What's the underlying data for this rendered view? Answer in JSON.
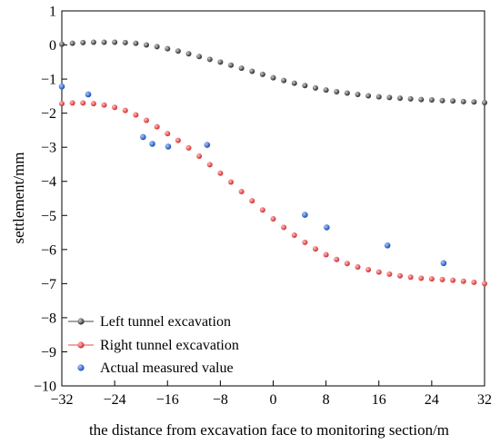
{
  "chart_data": {
    "type": "scatter",
    "xlabel": "the distance from excavation face to monitoring section/m",
    "ylabel": "settlement/mm",
    "xlim": [
      -32,
      32
    ],
    "ylim": [
      -10,
      1
    ],
    "xticks": [
      -32,
      -24,
      -16,
      -8,
      0,
      8,
      16,
      24,
      32
    ],
    "xtick_labels": [
      "−32",
      "−24",
      "−16",
      "−8",
      "0",
      "8",
      "16",
      "24",
      "32"
    ],
    "yticks": [
      1,
      0,
      -1,
      -2,
      -3,
      -4,
      -5,
      -6,
      -7,
      -8,
      -9,
      -10
    ],
    "ytick_labels": [
      "1",
      "0",
      "−1",
      "−2",
      "−3",
      "−4",
      "−5",
      "−6",
      "−7",
      "−8",
      "−9",
      "−10"
    ],
    "grid": false,
    "legend_position": "bottom-left",
    "series": [
      {
        "name": "Left tunnel excavation",
        "color": "#4a4a4a",
        "marker": "sphere",
        "x": [
          -32,
          -30.4,
          -28.8,
          -27.2,
          -25.6,
          -24,
          -22.4,
          -20.8,
          -19.2,
          -17.6,
          -16,
          -14.4,
          -12.8,
          -11.2,
          -9.6,
          -8,
          -6.4,
          -4.8,
          -3.2,
          -1.6,
          0,
          1.6,
          3.2,
          4.8,
          6.4,
          8,
          9.6,
          11.2,
          12.8,
          14.4,
          16,
          17.6,
          19.2,
          20.8,
          22.4,
          24,
          25.6,
          27.2,
          28.8,
          30.4,
          32
        ],
        "y": [
          0.02,
          0.05,
          0.07,
          0.08,
          0.08,
          0.08,
          0.07,
          0.05,
          0.0,
          -0.05,
          -0.11,
          -0.18,
          -0.26,
          -0.34,
          -0.42,
          -0.5,
          -0.59,
          -0.68,
          -0.77,
          -0.86,
          -0.96,
          -1.04,
          -1.12,
          -1.19,
          -1.26,
          -1.32,
          -1.37,
          -1.41,
          -1.45,
          -1.49,
          -1.52,
          -1.54,
          -1.56,
          -1.58,
          -1.6,
          -1.61,
          -1.63,
          -1.64,
          -1.66,
          -1.67,
          -1.69
        ]
      },
      {
        "name": "Right tunnel excavation",
        "color": "#e84b4b",
        "marker": "sphere",
        "x": [
          -32,
          -30.4,
          -28.8,
          -27.2,
          -25.6,
          -24,
          -22.4,
          -20.8,
          -19.2,
          -17.6,
          -16,
          -14.4,
          -12.8,
          -11.2,
          -9.6,
          -8,
          -6.4,
          -4.8,
          -3.2,
          -1.6,
          0,
          1.6,
          3.2,
          4.8,
          6.4,
          8,
          9.6,
          11.2,
          12.8,
          14.4,
          16,
          17.6,
          19.2,
          20.8,
          22.4,
          24,
          25.6,
          27.2,
          28.8,
          30.4,
          32
        ],
        "y": [
          -1.72,
          -1.7,
          -1.7,
          -1.72,
          -1.76,
          -1.83,
          -1.92,
          -2.05,
          -2.21,
          -2.4,
          -2.6,
          -2.8,
          -3.02,
          -3.26,
          -3.51,
          -3.76,
          -4.02,
          -4.3,
          -4.57,
          -4.84,
          -5.1,
          -5.35,
          -5.58,
          -5.79,
          -5.98,
          -6.15,
          -6.29,
          -6.41,
          -6.51,
          -6.59,
          -6.66,
          -6.72,
          -6.77,
          -6.81,
          -6.84,
          -6.86,
          -6.88,
          -6.9,
          -6.93,
          -6.96,
          -7.0
        ]
      },
      {
        "name": "Actual measured value",
        "color": "#2f6bcf",
        "marker": "sphere",
        "x": [
          -32,
          -28,
          -19.7,
          -18.3,
          -15.9,
          -10,
          4.8,
          8.1,
          17.3,
          25.8
        ],
        "y": [
          -1.22,
          -1.45,
          -2.7,
          -2.9,
          -2.98,
          -2.93,
          -4.98,
          -5.35,
          -5.88,
          -6.4
        ]
      }
    ]
  }
}
